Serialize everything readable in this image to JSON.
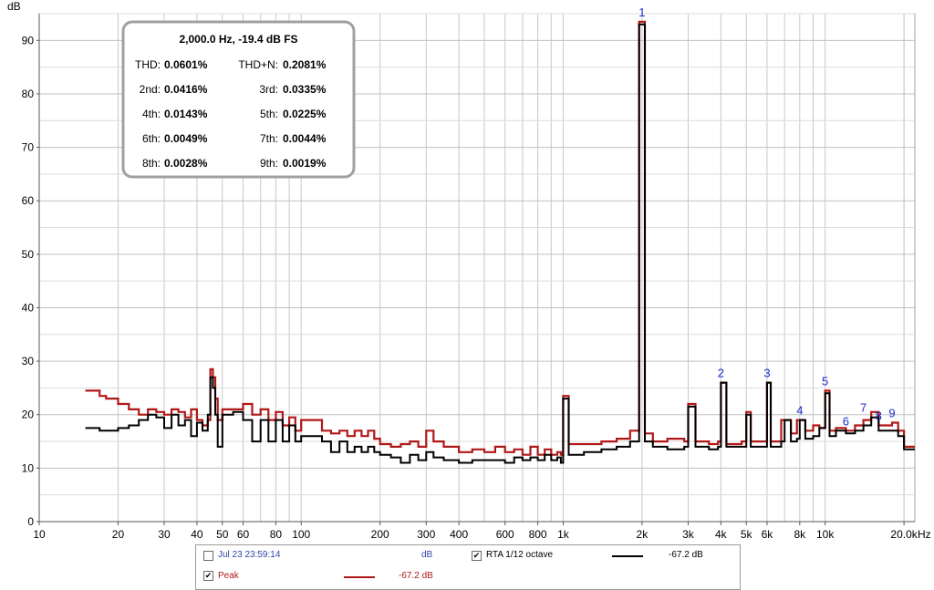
{
  "chart_data": {
    "type": "line",
    "xscale": "log",
    "xlim": [
      10,
      22000
    ],
    "ylim": [
      0,
      95
    ],
    "y_unit_label": "dB",
    "x_unit_label": "Hz",
    "y_ticks": [
      0,
      10,
      20,
      30,
      40,
      50,
      60,
      70,
      80,
      90
    ],
    "x_ticks": [
      {
        "v": 10,
        "label": "10"
      },
      {
        "v": 20,
        "label": "20"
      },
      {
        "v": 30,
        "label": "30"
      },
      {
        "v": 40,
        "label": "40"
      },
      {
        "v": 50,
        "label": "50"
      },
      {
        "v": 60,
        "label": "60"
      },
      {
        "v": 80,
        "label": "80"
      },
      {
        "v": 100,
        "label": "100"
      },
      {
        "v": 200,
        "label": "200"
      },
      {
        "v": 300,
        "label": "300"
      },
      {
        "v": 400,
        "label": "400"
      },
      {
        "v": 600,
        "label": "600"
      },
      {
        "v": 800,
        "label": "800"
      },
      {
        "v": 1000,
        "label": "1k"
      },
      {
        "v": 2000,
        "label": "2k"
      },
      {
        "v": 3000,
        "label": "3k"
      },
      {
        "v": 4000,
        "label": "4k"
      },
      {
        "v": 5000,
        "label": "5k"
      },
      {
        "v": 6000,
        "label": "6k"
      },
      {
        "v": 8000,
        "label": "8k"
      },
      {
        "v": 10000,
        "label": "10k"
      },
      {
        "v": 20000,
        "label": "20.0k"
      }
    ],
    "grid": true,
    "series": [
      {
        "name": "RTA 1/12 octave",
        "color": "#000000",
        "points": [
          [
            15,
            17.5
          ],
          [
            17,
            17
          ],
          [
            18,
            17
          ],
          [
            20,
            17.5
          ],
          [
            22,
            18
          ],
          [
            24,
            19
          ],
          [
            26,
            20
          ],
          [
            28,
            19.5
          ],
          [
            30,
            17.5
          ],
          [
            32,
            20
          ],
          [
            34,
            18
          ],
          [
            36,
            19
          ],
          [
            38,
            16
          ],
          [
            40,
            18.5
          ],
          [
            42,
            17
          ],
          [
            44,
            20
          ],
          [
            45,
            27
          ],
          [
            46,
            25
          ],
          [
            47,
            20
          ],
          [
            48,
            14
          ],
          [
            50,
            20
          ],
          [
            55,
            20.5
          ],
          [
            60,
            19
          ],
          [
            65,
            15
          ],
          [
            70,
            19
          ],
          [
            75,
            15
          ],
          [
            80,
            19
          ],
          [
            85,
            15
          ],
          [
            90,
            18
          ],
          [
            95,
            15
          ],
          [
            100,
            16
          ],
          [
            120,
            15
          ],
          [
            130,
            13
          ],
          [
            140,
            15
          ],
          [
            150,
            13
          ],
          [
            160,
            14
          ],
          [
            170,
            13
          ],
          [
            180,
            14
          ],
          [
            190,
            13
          ],
          [
            200,
            12.5
          ],
          [
            220,
            12
          ],
          [
            240,
            11
          ],
          [
            260,
            12.5
          ],
          [
            280,
            11.5
          ],
          [
            300,
            13
          ],
          [
            320,
            12
          ],
          [
            350,
            11.5
          ],
          [
            380,
            11.5
          ],
          [
            400,
            11
          ],
          [
            450,
            11.5
          ],
          [
            500,
            11.5
          ],
          [
            550,
            11.5
          ],
          [
            600,
            11
          ],
          [
            650,
            12
          ],
          [
            700,
            11.5
          ],
          [
            750,
            12
          ],
          [
            800,
            11.5
          ],
          [
            850,
            12.5
          ],
          [
            900,
            11.5
          ],
          [
            950,
            12
          ],
          [
            980,
            11
          ],
          [
            1000,
            23
          ],
          [
            1050,
            12.5
          ],
          [
            1200,
            13
          ],
          [
            1400,
            13.5
          ],
          [
            1600,
            14
          ],
          [
            1800,
            15
          ],
          [
            1950,
            93
          ],
          [
            2050,
            15
          ],
          [
            2200,
            14
          ],
          [
            2500,
            13.5
          ],
          [
            2900,
            14
          ],
          [
            3000,
            21.5
          ],
          [
            3200,
            14
          ],
          [
            3600,
            13.5
          ],
          [
            3900,
            14
          ],
          [
            4000,
            26
          ],
          [
            4200,
            14
          ],
          [
            4800,
            14
          ],
          [
            5000,
            20
          ],
          [
            5200,
            14
          ],
          [
            5800,
            14
          ],
          [
            6000,
            26
          ],
          [
            6200,
            14
          ],
          [
            6800,
            15
          ],
          [
            7000,
            19
          ],
          [
            7400,
            15
          ],
          [
            7800,
            15.5
          ],
          [
            8000,
            19
          ],
          [
            8400,
            15.5
          ],
          [
            9000,
            16
          ],
          [
            9500,
            17.5
          ],
          [
            10000,
            24
          ],
          [
            10400,
            16
          ],
          [
            11000,
            17
          ],
          [
            12000,
            16.5
          ],
          [
            13000,
            17
          ],
          [
            14000,
            18
          ],
          [
            15000,
            19.5
          ],
          [
            16000,
            17
          ],
          [
            17000,
            17
          ],
          [
            18000,
            17
          ],
          [
            19000,
            16
          ],
          [
            20000,
            13.5
          ],
          [
            21000,
            13.5
          ]
        ]
      },
      {
        "name": "Peak",
        "color": "#b01818",
        "points": [
          [
            15,
            24.5
          ],
          [
            17,
            23.5
          ],
          [
            18,
            23
          ],
          [
            20,
            22
          ],
          [
            22,
            21
          ],
          [
            24,
            20
          ],
          [
            26,
            21
          ],
          [
            28,
            20.5
          ],
          [
            30,
            20
          ],
          [
            32,
            21
          ],
          [
            34,
            20.5
          ],
          [
            36,
            19.5
          ],
          [
            38,
            21
          ],
          [
            40,
            19
          ],
          [
            42,
            18
          ],
          [
            44,
            19
          ],
          [
            45,
            28.5
          ],
          [
            46,
            27
          ],
          [
            47,
            23
          ],
          [
            48,
            19
          ],
          [
            50,
            21
          ],
          [
            55,
            21
          ],
          [
            60,
            22
          ],
          [
            65,
            20
          ],
          [
            70,
            21
          ],
          [
            75,
            19
          ],
          [
            80,
            20.5
          ],
          [
            85,
            18
          ],
          [
            90,
            19.5
          ],
          [
            95,
            17
          ],
          [
            100,
            19
          ],
          [
            120,
            17
          ],
          [
            130,
            16.5
          ],
          [
            140,
            17
          ],
          [
            150,
            16
          ],
          [
            160,
            17
          ],
          [
            170,
            16
          ],
          [
            180,
            17
          ],
          [
            190,
            15.5
          ],
          [
            200,
            14.5
          ],
          [
            220,
            14
          ],
          [
            240,
            14.5
          ],
          [
            260,
            15
          ],
          [
            280,
            14
          ],
          [
            300,
            17
          ],
          [
            320,
            15
          ],
          [
            350,
            14
          ],
          [
            380,
            14
          ],
          [
            400,
            13
          ],
          [
            450,
            13.5
          ],
          [
            500,
            13
          ],
          [
            550,
            14
          ],
          [
            600,
            13
          ],
          [
            650,
            13.5
          ],
          [
            700,
            12.5
          ],
          [
            750,
            14
          ],
          [
            800,
            12.5
          ],
          [
            850,
            13.5
          ],
          [
            900,
            12.5
          ],
          [
            950,
            13
          ],
          [
            980,
            12.5
          ],
          [
            1000,
            23.5
          ],
          [
            1050,
            14.5
          ],
          [
            1200,
            14.5
          ],
          [
            1400,
            15
          ],
          [
            1600,
            15.5
          ],
          [
            1800,
            17
          ],
          [
            1950,
            93.5
          ],
          [
            2050,
            16.5
          ],
          [
            2200,
            15
          ],
          [
            2500,
            15.5
          ],
          [
            2900,
            15
          ],
          [
            3000,
            22
          ],
          [
            3200,
            15
          ],
          [
            3600,
            14.5
          ],
          [
            3900,
            15
          ],
          [
            4000,
            26
          ],
          [
            4200,
            14.5
          ],
          [
            4800,
            15
          ],
          [
            5000,
            20.5
          ],
          [
            5200,
            15
          ],
          [
            5800,
            15
          ],
          [
            6000,
            26
          ],
          [
            6200,
            15
          ],
          [
            6800,
            19
          ],
          [
            7000,
            19
          ],
          [
            7400,
            16.5
          ],
          [
            7800,
            19
          ],
          [
            8000,
            19
          ],
          [
            8400,
            17
          ],
          [
            9000,
            18
          ],
          [
            9500,
            17.5
          ],
          [
            10000,
            24.5
          ],
          [
            10400,
            17
          ],
          [
            11000,
            17.5
          ],
          [
            12000,
            17
          ],
          [
            13000,
            18
          ],
          [
            14000,
            19
          ],
          [
            15000,
            20.5
          ],
          [
            16000,
            18
          ],
          [
            17000,
            18
          ],
          [
            18000,
            18.5
          ],
          [
            19000,
            17
          ],
          [
            20000,
            14
          ],
          [
            21000,
            14
          ]
        ]
      }
    ],
    "harmonic_markers": [
      {
        "label": "1",
        "x": 2000,
        "y": 93.5
      },
      {
        "label": "2",
        "x": 4000,
        "y": 26
      },
      {
        "label": "3",
        "x": 6000,
        "y": 26
      },
      {
        "label": "4",
        "x": 8000,
        "y": 19
      },
      {
        "label": "5",
        "x": 10000,
        "y": 24.5
      },
      {
        "label": "6",
        "x": 12000,
        "y": 17
      },
      {
        "label": "7",
        "x": 14000,
        "y": 19.5
      },
      {
        "label": "8",
        "x": 16000,
        "y": 18
      },
      {
        "label": "9",
        "x": 18000,
        "y": 18.5
      }
    ]
  },
  "info_box": {
    "title": "2,000.0 Hz, -19.4 dB FS",
    "rows": [
      [
        {
          "label": "THD:",
          "value": "0.0601%"
        },
        {
          "label": "THD+N:",
          "value": "0.2081%"
        }
      ],
      [
        {
          "label": "2nd:",
          "value": "0.0416%"
        },
        {
          "label": "3rd:",
          "value": "0.0335%"
        }
      ],
      [
        {
          "label": "4th:",
          "value": "0.0143%"
        },
        {
          "label": "5th:",
          "value": "0.0225%"
        }
      ],
      [
        {
          "label": "6th:",
          "value": "0.0049%"
        },
        {
          "label": "7th:",
          "value": "0.0044%"
        }
      ],
      [
        {
          "label": "8th:",
          "value": "0.0028%"
        },
        {
          "label": "9th:",
          "value": "0.0019%"
        }
      ]
    ]
  },
  "legend": {
    "entry1": {
      "label": "Jul 23 23:59:14",
      "checked": false,
      "unit": "dB",
      "color": "#3344aa"
    },
    "entry2": {
      "label": "RTA 1/12 octave",
      "checked": true,
      "value": "-67.2 dB",
      "color": "#000000"
    },
    "entry3": {
      "label": "Peak",
      "checked": true,
      "value": "-67.2 dB",
      "color": "#b01818"
    }
  }
}
